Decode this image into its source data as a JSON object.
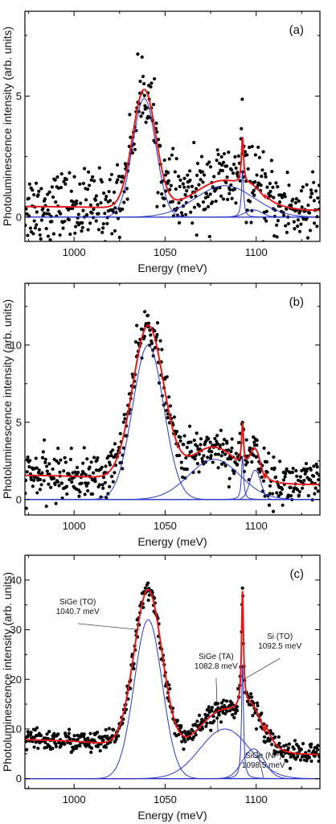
{
  "colors": {
    "points": "#000000",
    "fit_total": "#e41a1c",
    "fit_components": "#2a35c8",
    "frame": "#000000"
  },
  "chart_data": [
    {
      "type": "scatter",
      "panel_label": "(a)",
      "xlabel": "Energy (meV)",
      "ylabel": "Photoluminescence intensity (arb. units)",
      "xlim": [
        973,
        1135
      ],
      "ylim": [
        -1,
        8.5
      ],
      "x_ticks": [
        1000,
        1050,
        1100
      ],
      "y_ticks": [
        0,
        5
      ],
      "noise": 0.75,
      "baseline": 0.45,
      "series": [
        {
          "kind": "component",
          "shape": "gauss",
          "center": 1038.5,
          "fwhm": 15,
          "amplitude": 4.9
        },
        {
          "kind": "component",
          "shape": "gauss",
          "center": 1082.8,
          "fwhm": 38,
          "amplitude": 1.3
        },
        {
          "kind": "component",
          "shape": "lorentz",
          "center": 1092.5,
          "fwhm": 1.4,
          "amplitude": 1.9
        },
        {
          "kind": "component",
          "shape": "gauss",
          "center": 1098.5,
          "fwhm": 11,
          "amplitude": 0.3
        }
      ],
      "annotations": []
    },
    {
      "type": "scatter",
      "panel_label": "(b)",
      "xlabel": "Energy (meV)",
      "ylabel": "Photoluminescence intensity (arb. units)",
      "xlim": [
        973,
        1135
      ],
      "ylim": [
        -1,
        14
      ],
      "x_ticks": [
        1000,
        1050,
        1100
      ],
      "y_ticks": [
        0,
        5,
        10
      ],
      "noise": 0.75,
      "baseline": 1.6,
      "series": [
        {
          "kind": "component",
          "shape": "gauss",
          "center": 1040.7,
          "fwhm": 20,
          "amplitude": 10.0
        },
        {
          "kind": "component",
          "shape": "gauss",
          "center": 1077,
          "fwhm": 33,
          "amplitude": 2.6
        },
        {
          "kind": "component",
          "shape": "lorentz",
          "center": 1092.5,
          "fwhm": 1.4,
          "amplitude": 2.7
        },
        {
          "kind": "component",
          "shape": "gauss",
          "center": 1099.5,
          "fwhm": 7,
          "amplitude": 1.9
        }
      ],
      "annotations": []
    },
    {
      "type": "scatter",
      "panel_label": "(c)",
      "xlabel": "Energy (meV)",
      "ylabel": "Photoluminescence intensity (arb. units)",
      "xlim": [
        973,
        1135
      ],
      "ylim": [
        -2,
        45
      ],
      "x_ticks": [
        1000,
        1050,
        1100
      ],
      "y_ticks": [
        0,
        10,
        20,
        30,
        40
      ],
      "noise": 1.1,
      "baseline": 8.0,
      "series": [
        {
          "kind": "component",
          "shape": "gauss",
          "center": 1040.7,
          "fwhm": 18,
          "amplitude": 32.0
        },
        {
          "kind": "component",
          "shape": "gauss",
          "center": 1082.8,
          "fwhm": 32,
          "amplitude": 10.0
        },
        {
          "kind": "component",
          "shape": "lorentz",
          "center": 1092.5,
          "fwhm": 1.3,
          "amplitude": 23.0
        },
        {
          "kind": "component",
          "shape": "gauss",
          "center": 1098.5,
          "fwhm": 14,
          "amplitude": 6.0
        }
      ],
      "annotations": [
        {
          "lines": [
            "SiGe (TO)",
            "1040.7 meV"
          ],
          "text_x": 1002,
          "text_y": 33.5,
          "arrow_to": [
            1036,
            30
          ]
        },
        {
          "lines": [
            "SiGe (TA)",
            "1082.8 meV"
          ],
          "text_x": 1078,
          "text_y": 22.5,
          "arrow_to": [
            1079,
            9.3
          ]
        },
        {
          "lines": [
            "Si (TO)",
            "1092.5 meV"
          ],
          "text_x": 1113,
          "text_y": 26.5,
          "arrow_to": [
            1093.2,
            20
          ]
        },
        {
          "lines": [
            "SiGe (NP)",
            "1098.5 meV"
          ],
          "text_x": 1104,
          "text_y": 2.5,
          "arrow_to": [
            1100.5,
            5.6
          ]
        }
      ]
    }
  ]
}
